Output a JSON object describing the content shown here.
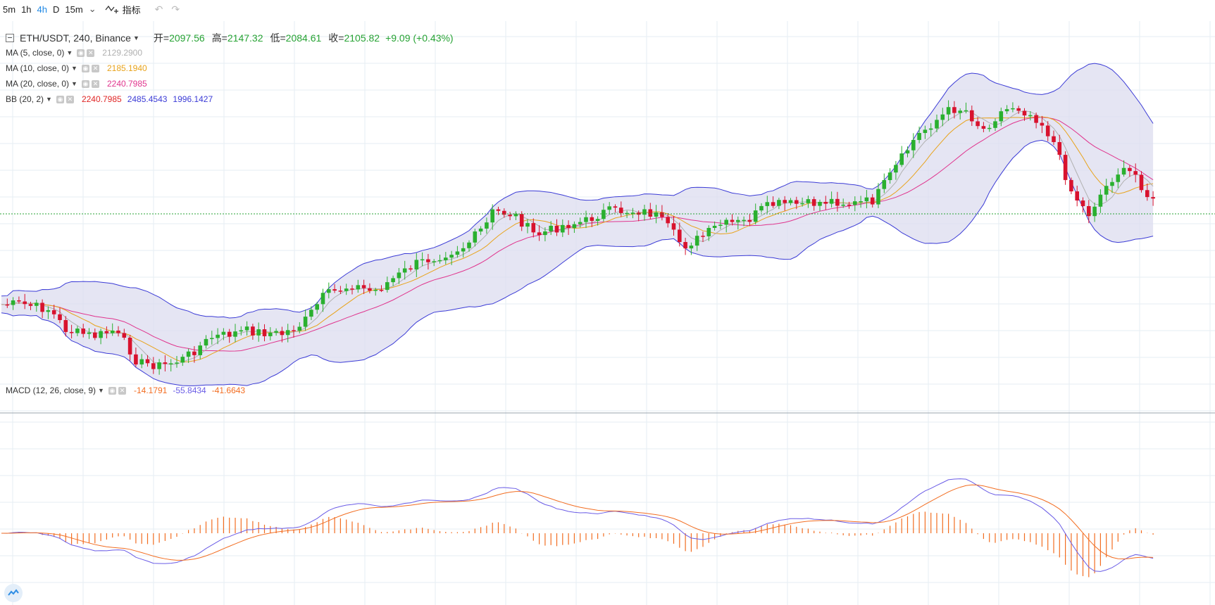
{
  "toolbar": {
    "timeframes": [
      "5m",
      "1h",
      "4h",
      "D",
      "15m"
    ],
    "active_timeframe": "4h",
    "indicators_label": "指标"
  },
  "symbol": {
    "title": "ETH/USDT, 240, Binance",
    "open_label": "开=",
    "open": "2097.56",
    "high_label": "高=",
    "high": "2147.32",
    "low_label": "低=",
    "low": "2084.61",
    "close_label": "收=",
    "close": "2105.82",
    "change": "+9.09 (+0.43%)"
  },
  "indicators": {
    "ma5": {
      "name": "MA (5, close, 0)",
      "value": "2129.2900",
      "color": "#b0b0b0"
    },
    "ma10": {
      "name": "MA (10, close, 0)",
      "value": "2185.1940",
      "color": "#e8a31b"
    },
    "ma20": {
      "name": "MA (20, close, 0)",
      "value": "2240.7985",
      "color": "#e0358e"
    },
    "bb": {
      "name": "BB (20, 2)",
      "basis": "2240.7985",
      "upper": "2485.4543",
      "lower": "1996.1427",
      "basis_color": "#e02525",
      "upper_color": "#3b3bd6",
      "lower_color": "#3b3bd6"
    },
    "macd": {
      "name": "MACD (12, 26, close, 9)",
      "hist": "-14.1791",
      "macd": "-55.8434",
      "signal": "-41.6643",
      "hist_color": "#f26d21",
      "macd_color": "#6a5ce6",
      "signal_color": "#f26d21"
    }
  },
  "colors": {
    "up": "#2ab02f",
    "down": "#d8122e",
    "grid": "#e6edf3",
    "bb_fill": "#dcdcef",
    "last_price_line": "#27a334"
  },
  "icons": {
    "chevron": "chevron-down-icon",
    "eye": "eye-icon",
    "close": "close-icon",
    "logo": "tradingview-logo-icon"
  }
}
